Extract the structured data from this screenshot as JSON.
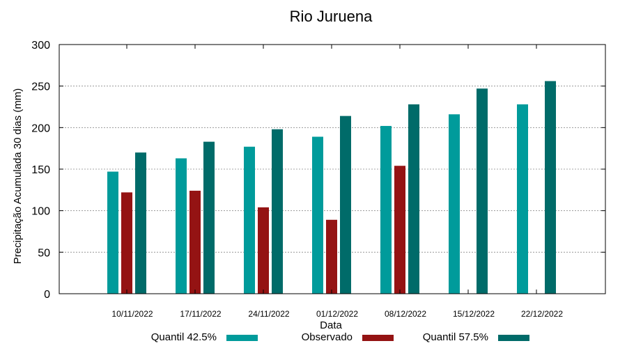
{
  "chart_data": {
    "type": "bar",
    "title": "Rio Juruena",
    "xlabel": "Data",
    "ylabel": "Precipitação Acumulada 30 dias (mm)",
    "ylim": [
      0,
      300
    ],
    "yticks": [
      0,
      50,
      100,
      150,
      200,
      250,
      300
    ],
    "grid": true,
    "legend_position": "bottom",
    "categories": [
      "10/11/2022",
      "17/11/2022",
      "24/11/2022",
      "01/12/2022",
      "08/12/2022",
      "15/12/2022",
      "22/12/2022"
    ],
    "series": [
      {
        "name": "Quantil 42.5%",
        "color": "#009b9b",
        "values": [
          147,
          163,
          177,
          189,
          202,
          216,
          228
        ]
      },
      {
        "name": "Observado",
        "color": "#941313",
        "values": [
          122,
          124,
          104,
          89,
          154,
          null,
          null
        ]
      },
      {
        "name": "Quantil 57.5%",
        "color": "#006b69",
        "values": [
          170,
          183,
          198,
          214,
          228,
          247,
          256
        ]
      }
    ]
  }
}
